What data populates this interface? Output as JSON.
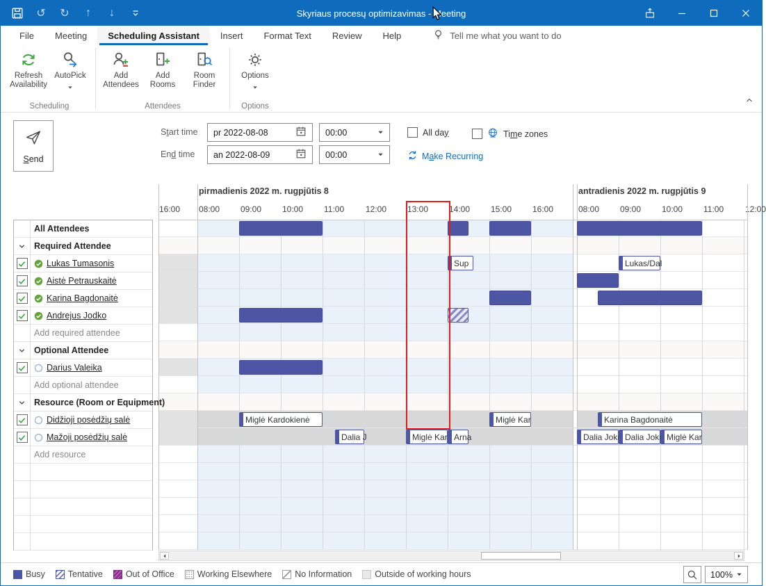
{
  "window": {
    "title": "Skyriaus procesų optimizavimas  -  Meeting",
    "quick_access": [
      "save",
      "undo",
      "redo",
      "move-up",
      "move-down",
      "customize-quick-access"
    ],
    "controls": [
      "popout",
      "minimize",
      "maximize",
      "close"
    ]
  },
  "tabs": [
    "File",
    "Meeting",
    "Scheduling Assistant",
    "Insert",
    "Format Text",
    "Review",
    "Help"
  ],
  "active_tab": "Scheduling Assistant",
  "tell_me": "Tell me what you want to do",
  "ribbon": {
    "groups": [
      {
        "label": "Scheduling",
        "buttons": [
          {
            "label": "Refresh Availability",
            "icon": "refresh-availability",
            "dropdown": false
          },
          {
            "label": "AutoPick",
            "icon": "autopick",
            "dropdown": true
          }
        ]
      },
      {
        "label": "Attendees",
        "buttons": [
          {
            "label": "Add Attendees",
            "icon": "add-attendees",
            "dropdown": false
          },
          {
            "label": "Add Rooms",
            "icon": "add-rooms",
            "dropdown": false
          },
          {
            "label": "Room Finder",
            "icon": "room-finder",
            "dropdown": false
          }
        ]
      },
      {
        "label": "Options",
        "buttons": [
          {
            "label": "Options",
            "icon": "options-gear",
            "dropdown": true
          }
        ]
      }
    ]
  },
  "form": {
    "send_label": "|S|end",
    "start_label": "S|t|art time",
    "end_label": "En|d| time",
    "start_date": "pr 2022-08-08",
    "end_date": "an 2022-08-09",
    "start_time": "00:00",
    "end_time": "00:00",
    "all_day": "All da|y|",
    "time_zones": "Ti|m|e zones",
    "make_recurring": "M|a|ke Recurring"
  },
  "grid": {
    "lead_label": "16:00",
    "days": [
      {
        "title": "pirmadienis 2022 m. rugpjūtis 8",
        "hours": [
          "08:00",
          "09:00",
          "10:00",
          "11:00",
          "12:00",
          "13:00",
          "14:00",
          "15:00",
          "16:00"
        ]
      },
      {
        "title": "antradienis 2022 m. rugpjūtis 9",
        "hours": [
          "08:00",
          "09:00",
          "10:00",
          "11:00",
          "12:00"
        ]
      }
    ],
    "selection": {
      "day": 1,
      "start": 13,
      "end": 14
    }
  },
  "rows": [
    {
      "type": "table-header",
      "label": "All Attendees",
      "zone": "normal",
      "lead": "white",
      "events": [
        {
          "day": 1,
          "start": 9,
          "end": 11,
          "kind": "busy"
        },
        {
          "day": 1,
          "start": 14,
          "end": 14.5,
          "kind": "busy"
        },
        {
          "day": 1,
          "start": 15,
          "end": 16,
          "kind": "busy"
        },
        {
          "day": 2,
          "start": 8,
          "end": 11,
          "kind": "busy"
        }
      ]
    },
    {
      "type": "section",
      "label": "Required Attendee",
      "zone": "header",
      "events": []
    },
    {
      "type": "person",
      "name": "Lukas Tumasonis",
      "presence": "accepted",
      "checked": true,
      "zone": "normal",
      "lead": "gray",
      "events": [
        {
          "day": 1,
          "start": 14,
          "end": 14.62,
          "kind": "box",
          "label": "Sup"
        },
        {
          "day": 2,
          "start": 9,
          "end": 10,
          "kind": "box",
          "label": "Lukas/Dal"
        }
      ]
    },
    {
      "type": "person",
      "name": "Aistė Petrauskaitė",
      "presence": "accepted",
      "checked": true,
      "zone": "normal",
      "lead": "gray",
      "events": [
        {
          "day": 2,
          "start": 8,
          "end": 9,
          "kind": "busy"
        }
      ]
    },
    {
      "type": "person",
      "name": "Karina Bagdonaitė",
      "presence": "accepted",
      "checked": true,
      "zone": "normal",
      "lead": "gray",
      "events": [
        {
          "day": 1,
          "start": 15,
          "end": 16,
          "kind": "busy"
        },
        {
          "day": 2,
          "start": 8.5,
          "end": 11,
          "kind": "busy"
        }
      ]
    },
    {
      "type": "person",
      "name": "Andrejus Jodko",
      "presence": "accepted",
      "checked": true,
      "zone": "normal",
      "lead": "gray",
      "events": [
        {
          "day": 1,
          "start": 9,
          "end": 11,
          "kind": "busy"
        },
        {
          "day": 1,
          "start": 14,
          "end": 14.5,
          "kind": "tentative"
        }
      ]
    },
    {
      "type": "add",
      "label": "Add required attendee",
      "zone": "normal",
      "lead": "white",
      "events": []
    },
    {
      "type": "section",
      "label": "Optional Attendee",
      "zone": "header",
      "events": []
    },
    {
      "type": "person",
      "name": "Darius Valeika",
      "presence": "circle",
      "checked": true,
      "zone": "normal",
      "lead": "gray",
      "events": [
        {
          "day": 1,
          "start": 9,
          "end": 11,
          "kind": "busy"
        }
      ]
    },
    {
      "type": "add",
      "label": "Add optional attendee",
      "zone": "normal",
      "lead": "white",
      "events": []
    },
    {
      "type": "section",
      "label": "Resource (Room or Equipment)",
      "zone": "header",
      "events": []
    },
    {
      "type": "person",
      "name": "Didžioji posėdžių salė",
      "presence": "circle",
      "checked": true,
      "zone": "resource",
      "lead": "gray",
      "events": [
        {
          "day": 1,
          "start": 9,
          "end": 11,
          "kind": "box",
          "label": "Miglė Kardokienė"
        },
        {
          "day": 1,
          "start": 15,
          "end": 16,
          "kind": "box",
          "label": "Miglė Kar"
        },
        {
          "day": 2,
          "start": 8.5,
          "end": 11,
          "kind": "box",
          "label": "Karina Bagdonaitė"
        }
      ]
    },
    {
      "type": "person",
      "name": "Mažoji posėdžių salė",
      "presence": "circle",
      "checked": true,
      "zone": "resource",
      "lead": "gray",
      "events": [
        {
          "day": 1,
          "start": 11.3,
          "end": 12,
          "kind": "box",
          "label": "Dalia J"
        },
        {
          "day": 1,
          "start": 13,
          "end": 14,
          "kind": "box",
          "label": "Miglė Kar"
        },
        {
          "day": 1,
          "start": 14,
          "end": 14.5,
          "kind": "box",
          "label": "Arna"
        },
        {
          "day": 2,
          "start": 8,
          "end": 9,
          "kind": "box",
          "label": "Dalia Joku"
        },
        {
          "day": 2,
          "start": 9,
          "end": 10,
          "kind": "box",
          "label": "Dalia Joku"
        },
        {
          "day": 2,
          "start": 10,
          "end": 11,
          "kind": "box",
          "label": "Miglė Kar"
        }
      ]
    },
    {
      "type": "add",
      "label": "Add resource",
      "zone": "normal",
      "lead": "white",
      "events": []
    },
    {
      "type": "empty",
      "zone": "normal",
      "lead": "white",
      "events": []
    },
    {
      "type": "empty",
      "zone": "normal",
      "lead": "white",
      "events": []
    },
    {
      "type": "empty",
      "zone": "normal",
      "lead": "white",
      "events": []
    },
    {
      "type": "empty",
      "zone": "normal",
      "lead": "white",
      "events": []
    },
    {
      "type": "empty",
      "zone": "normal",
      "lead": "white",
      "events": []
    }
  ],
  "legend": [
    {
      "label": "Busy",
      "swatch": "busy"
    },
    {
      "label": "Tentative",
      "swatch": "tentative"
    },
    {
      "label": "Out of Office",
      "swatch": "ooo"
    },
    {
      "label": "Working Elsewhere",
      "swatch": "elsewhere"
    },
    {
      "label": "No Information",
      "swatch": "noinfo"
    },
    {
      "label": "Outside of working hours",
      "swatch": "outside"
    }
  ],
  "status": {
    "zoom": "100%"
  },
  "colors": {
    "accent": "#0f6cbd",
    "busy": "#4d55a5",
    "selection_red": "#e01b1b",
    "working_bg": "#e9f1fb",
    "lead_gray": "#e2e2e2",
    "resource_gray": "#d8d8d8",
    "section_row": "#faf9f8"
  }
}
